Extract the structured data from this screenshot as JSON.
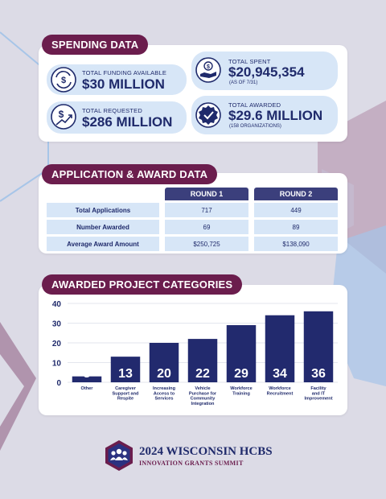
{
  "colors": {
    "accent": "#6b1d4d",
    "navy": "#1f2a6b",
    "bar": "#222a6e",
    "card": "#d7e6f7",
    "header": "#3b3f7c"
  },
  "spending": {
    "title": "SPENDING DATA",
    "funding": {
      "label": "TOTAL FUNDING AVAILABLE",
      "value": "$30 MILLION",
      "icon": "exchange-dollar-icon"
    },
    "requested": {
      "label": "TOTAL REQUESTED",
      "value": "$286 MILLION",
      "icon": "rising-dollar-icon"
    },
    "spent": {
      "label": "TOTAL SPENT",
      "value": "$20,945,354",
      "note": "(AS OF 7/31)",
      "icon": "hand-coin-icon"
    },
    "awarded": {
      "label": "TOTAL AWARDED",
      "value": "$29.6 MILLION",
      "note": "(158 ORGANIZATIONS)",
      "icon": "badge-check-icon"
    }
  },
  "application": {
    "title": "APPLICATION & AWARD DATA",
    "columns": [
      "ROUND 1",
      "ROUND 2"
    ],
    "rows": [
      {
        "label": "Total Applications",
        "r1": "717",
        "r2": "449"
      },
      {
        "label": "Number Awarded",
        "r1": "69",
        "r2": "89"
      },
      {
        "label": "Average Award Amount",
        "r1": "$250,725",
        "r2": "$138,090"
      }
    ]
  },
  "categories": {
    "title": "AWARDED PROJECT CATEGORIES"
  },
  "chart_data": {
    "type": "bar",
    "title": "AWARDED PROJECT CATEGORIES",
    "categories": [
      "Other",
      "Caregiver Support and Respite",
      "Increasing Access to Services",
      "Vehicle Purchase for Community Integration",
      "Workforce Training",
      "Workforce Recruitment",
      "Facility and IT Improvement"
    ],
    "category_lines": [
      [
        "Other"
      ],
      [
        "Caregiver",
        "Support and",
        "Respite"
      ],
      [
        "Increasing",
        "Access to",
        "Services"
      ],
      [
        "Vehicle",
        "Purchase for",
        "Community",
        "Integration"
      ],
      [
        "Workforce",
        "Training"
      ],
      [
        "Workforce",
        "Recruitment"
      ],
      [
        "Facility",
        "and IT",
        "Improvement"
      ]
    ],
    "values": [
      3,
      13,
      20,
      22,
      29,
      34,
      36
    ],
    "yticks": [
      0,
      10,
      20,
      30,
      40
    ],
    "ylim": [
      0,
      40
    ],
    "grid": true,
    "xlabel": "",
    "ylabel": ""
  },
  "footer": {
    "title": "2024 WISCONSIN HCBS",
    "subtitle": "INNOVATION GRANTS SUMMIT",
    "icon": "people-group-icon"
  }
}
